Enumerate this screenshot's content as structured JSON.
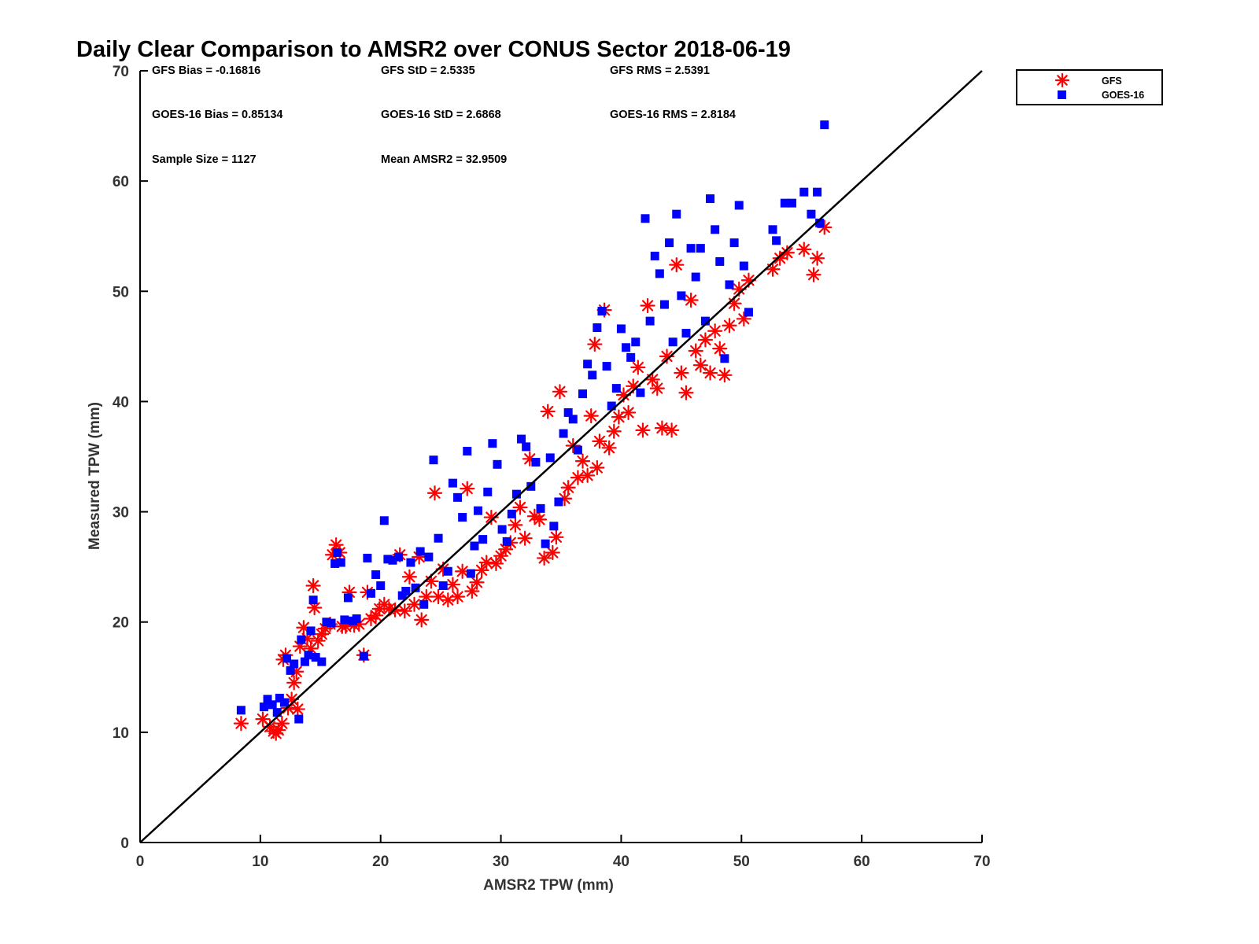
{
  "chart_data": {
    "type": "scatter",
    "title": "Daily Clear Comparison to AMSR2 over CONUS Sector 2018-06-19",
    "xlabel": "AMSR2 TPW (mm)",
    "ylabel": "Measured TPW (mm)",
    "xlim": [
      0,
      70
    ],
    "ylim": [
      0,
      70
    ],
    "x_ticks": [
      "0",
      "10",
      "20",
      "30",
      "40",
      "50",
      "60",
      "70"
    ],
    "y_ticks": [
      "0",
      "10",
      "20",
      "30",
      "40",
      "50",
      "60",
      "70"
    ],
    "grid": false,
    "legend_position": "outside-top-right",
    "reference_line": {
      "from": [
        0,
        0
      ],
      "to": [
        70,
        70
      ],
      "color": "#000000"
    },
    "stats": [
      "GFS Bias = -0.16816",
      "GFS StD = 2.5335",
      "GFS RMS = 2.5391",
      "GOES-16 Bias = 0.85134",
      "GOES-16 StD = 2.6868",
      "GOES-16 RMS = 2.8184",
      "Sample Size = 1127",
      "Mean AMSR2 = 32.9509"
    ],
    "series": [
      {
        "name": "GFS",
        "marker": "asterisk",
        "color": "#ff0000",
        "points": [
          [
            8.4,
            10.8
          ],
          [
            10.2,
            11.2
          ],
          [
            10.8,
            10.5
          ],
          [
            11.1,
            10.1
          ],
          [
            11.3,
            9.9
          ],
          [
            11.5,
            10.2
          ],
          [
            11.8,
            10.8
          ],
          [
            11.9,
            16.6
          ],
          [
            12.1,
            17.0
          ],
          [
            12.3,
            12.2
          ],
          [
            12.6,
            13.0
          ],
          [
            12.8,
            14.5
          ],
          [
            13.0,
            15.5
          ],
          [
            13.1,
            12.1
          ],
          [
            13.3,
            17.8
          ],
          [
            13.6,
            19.5
          ],
          [
            13.9,
            18.5
          ],
          [
            14.2,
            17.6
          ],
          [
            14.4,
            23.3
          ],
          [
            14.5,
            21.3
          ],
          [
            14.8,
            18.3
          ],
          [
            15.1,
            18.9
          ],
          [
            15.4,
            19.4
          ],
          [
            15.8,
            19.8
          ],
          [
            16.0,
            26.1
          ],
          [
            16.3,
            27.0
          ],
          [
            16.6,
            26.3
          ],
          [
            16.8,
            19.6
          ],
          [
            17.1,
            19.6
          ],
          [
            17.4,
            22.7
          ],
          [
            17.8,
            19.7
          ],
          [
            18.2,
            19.8
          ],
          [
            18.6,
            17.0
          ],
          [
            18.9,
            22.7
          ],
          [
            19.2,
            20.3
          ],
          [
            19.6,
            20.6
          ],
          [
            19.9,
            21.2
          ],
          [
            20.3,
            21.6
          ],
          [
            20.7,
            21.2
          ],
          [
            21.2,
            21.1
          ],
          [
            21.6,
            26.1
          ],
          [
            22.0,
            21.0
          ],
          [
            22.4,
            24.1
          ],
          [
            22.8,
            21.6
          ],
          [
            23.2,
            25.9
          ],
          [
            23.4,
            20.2
          ],
          [
            23.8,
            22.3
          ],
          [
            24.2,
            23.7
          ],
          [
            24.5,
            31.7
          ],
          [
            24.8,
            22.3
          ],
          [
            25.2,
            24.8
          ],
          [
            25.6,
            22.0
          ],
          [
            26.0,
            23.4
          ],
          [
            26.4,
            22.3
          ],
          [
            26.8,
            24.6
          ],
          [
            27.2,
            32.1
          ],
          [
            27.6,
            22.8
          ],
          [
            28.0,
            23.6
          ],
          [
            28.4,
            24.7
          ],
          [
            28.8,
            25.4
          ],
          [
            29.2,
            29.5
          ],
          [
            29.6,
            25.3
          ],
          [
            30.0,
            26.0
          ],
          [
            30.4,
            26.6
          ],
          [
            30.8,
            27.2
          ],
          [
            31.2,
            28.8
          ],
          [
            31.6,
            30.4
          ],
          [
            32.0,
            27.6
          ],
          [
            32.4,
            34.8
          ],
          [
            32.8,
            29.6
          ],
          [
            33.2,
            29.3
          ],
          [
            33.6,
            25.8
          ],
          [
            33.9,
            39.1
          ],
          [
            34.3,
            26.3
          ],
          [
            34.6,
            27.7
          ],
          [
            34.9,
            40.9
          ],
          [
            35.3,
            31.2
          ],
          [
            35.6,
            32.2
          ],
          [
            36.0,
            36.0
          ],
          [
            36.4,
            33.1
          ],
          [
            36.8,
            34.6
          ],
          [
            37.2,
            33.3
          ],
          [
            37.5,
            38.7
          ],
          [
            37.8,
            45.2
          ],
          [
            38.0,
            34.0
          ],
          [
            38.2,
            36.4
          ],
          [
            38.6,
            48.3
          ],
          [
            39.0,
            35.8
          ],
          [
            39.4,
            37.3
          ],
          [
            39.8,
            38.6
          ],
          [
            40.2,
            40.6
          ],
          [
            40.6,
            39.0
          ],
          [
            41.0,
            41.4
          ],
          [
            41.4,
            43.1
          ],
          [
            41.8,
            37.4
          ],
          [
            42.2,
            48.7
          ],
          [
            42.6,
            42.0
          ],
          [
            43.0,
            41.2
          ],
          [
            43.4,
            37.6
          ],
          [
            43.8,
            44.1
          ],
          [
            44.2,
            37.4
          ],
          [
            44.6,
            52.4
          ],
          [
            45.0,
            42.6
          ],
          [
            45.4,
            40.8
          ],
          [
            45.8,
            49.2
          ],
          [
            46.2,
            44.6
          ],
          [
            46.6,
            43.3
          ],
          [
            47.0,
            45.6
          ],
          [
            47.4,
            42.6
          ],
          [
            47.8,
            46.4
          ],
          [
            48.2,
            44.8
          ],
          [
            48.6,
            42.4
          ],
          [
            49.0,
            46.9
          ],
          [
            49.4,
            48.9
          ],
          [
            49.8,
            50.2
          ],
          [
            50.2,
            47.5
          ],
          [
            50.6,
            51.0
          ],
          [
            52.6,
            52.0
          ],
          [
            53.2,
            53.0
          ],
          [
            53.8,
            53.5
          ],
          [
            55.2,
            53.8
          ],
          [
            56.0,
            51.5
          ],
          [
            56.3,
            53.0
          ],
          [
            56.9,
            55.8
          ]
        ]
      },
      {
        "name": "GOES-16",
        "marker": "square",
        "color": "#0000ff",
        "points": [
          [
            8.4,
            12.0
          ],
          [
            10.3,
            12.3
          ],
          [
            10.6,
            13.0
          ],
          [
            11.0,
            12.5
          ],
          [
            11.4,
            11.8
          ],
          [
            11.6,
            13.1
          ],
          [
            12.0,
            12.7
          ],
          [
            12.2,
            16.7
          ],
          [
            12.5,
            15.6
          ],
          [
            12.8,
            16.2
          ],
          [
            13.2,
            11.2
          ],
          [
            13.4,
            18.4
          ],
          [
            13.7,
            16.4
          ],
          [
            14.0,
            17.0
          ],
          [
            14.2,
            19.2
          ],
          [
            14.4,
            22.0
          ],
          [
            14.6,
            16.8
          ],
          [
            15.1,
            16.4
          ],
          [
            15.5,
            20.0
          ],
          [
            15.9,
            19.9
          ],
          [
            16.2,
            25.3
          ],
          [
            16.4,
            26.3
          ],
          [
            16.7,
            25.4
          ],
          [
            17.0,
            20.2
          ],
          [
            17.3,
            22.2
          ],
          [
            17.7,
            20.1
          ],
          [
            18.0,
            20.3
          ],
          [
            18.6,
            16.9
          ],
          [
            18.9,
            25.8
          ],
          [
            19.2,
            22.6
          ],
          [
            19.6,
            24.3
          ],
          [
            20.0,
            23.3
          ],
          [
            20.3,
            29.2
          ],
          [
            20.6,
            25.7
          ],
          [
            21.0,
            25.6
          ],
          [
            21.5,
            25.9
          ],
          [
            21.8,
            22.4
          ],
          [
            22.1,
            22.8
          ],
          [
            22.5,
            25.4
          ],
          [
            22.9,
            23.1
          ],
          [
            23.3,
            26.4
          ],
          [
            23.6,
            21.6
          ],
          [
            24.0,
            25.9
          ],
          [
            24.4,
            34.7
          ],
          [
            24.8,
            27.6
          ],
          [
            25.2,
            23.3
          ],
          [
            25.6,
            24.6
          ],
          [
            26.0,
            32.6
          ],
          [
            26.4,
            31.3
          ],
          [
            26.8,
            29.5
          ],
          [
            27.2,
            35.5
          ],
          [
            27.5,
            24.4
          ],
          [
            27.8,
            26.9
          ],
          [
            28.1,
            30.1
          ],
          [
            28.5,
            27.5
          ],
          [
            28.9,
            31.8
          ],
          [
            29.3,
            36.2
          ],
          [
            29.7,
            34.3
          ],
          [
            30.1,
            28.4
          ],
          [
            30.5,
            27.3
          ],
          [
            30.9,
            29.8
          ],
          [
            31.3,
            31.6
          ],
          [
            31.7,
            36.6
          ],
          [
            32.1,
            35.9
          ],
          [
            32.5,
            32.3
          ],
          [
            32.9,
            34.5
          ],
          [
            33.3,
            30.3
          ],
          [
            33.7,
            27.1
          ],
          [
            34.1,
            34.9
          ],
          [
            34.4,
            28.7
          ],
          [
            34.8,
            30.9
          ],
          [
            35.2,
            37.1
          ],
          [
            35.6,
            39.0
          ],
          [
            36.0,
            38.4
          ],
          [
            36.4,
            35.6
          ],
          [
            36.8,
            40.7
          ],
          [
            37.2,
            43.4
          ],
          [
            37.6,
            42.4
          ],
          [
            38.0,
            46.7
          ],
          [
            38.4,
            48.2
          ],
          [
            38.8,
            43.2
          ],
          [
            39.2,
            39.6
          ],
          [
            39.6,
            41.2
          ],
          [
            40.0,
            46.6
          ],
          [
            40.4,
            44.9
          ],
          [
            40.8,
            44.0
          ],
          [
            41.2,
            45.4
          ],
          [
            41.6,
            40.8
          ],
          [
            42.0,
            56.6
          ],
          [
            42.4,
            47.3
          ],
          [
            42.8,
            53.2
          ],
          [
            43.2,
            51.6
          ],
          [
            43.6,
            48.8
          ],
          [
            44.0,
            54.4
          ],
          [
            44.3,
            45.4
          ],
          [
            44.6,
            57.0
          ],
          [
            45.0,
            49.6
          ],
          [
            45.4,
            46.2
          ],
          [
            45.8,
            53.9
          ],
          [
            46.2,
            51.3
          ],
          [
            46.6,
            53.9
          ],
          [
            47.0,
            47.3
          ],
          [
            47.4,
            58.4
          ],
          [
            47.8,
            55.6
          ],
          [
            48.2,
            52.7
          ],
          [
            48.6,
            43.9
          ],
          [
            49.0,
            50.6
          ],
          [
            49.4,
            54.4
          ],
          [
            49.8,
            57.8
          ],
          [
            50.2,
            52.3
          ],
          [
            50.6,
            48.1
          ],
          [
            52.6,
            55.6
          ],
          [
            52.9,
            54.6
          ],
          [
            53.6,
            58.0
          ],
          [
            54.2,
            58.0
          ],
          [
            55.2,
            59.0
          ],
          [
            55.8,
            57.0
          ],
          [
            56.3,
            59.0
          ],
          [
            56.5,
            56.2
          ],
          [
            56.9,
            65.1
          ]
        ]
      }
    ]
  }
}
